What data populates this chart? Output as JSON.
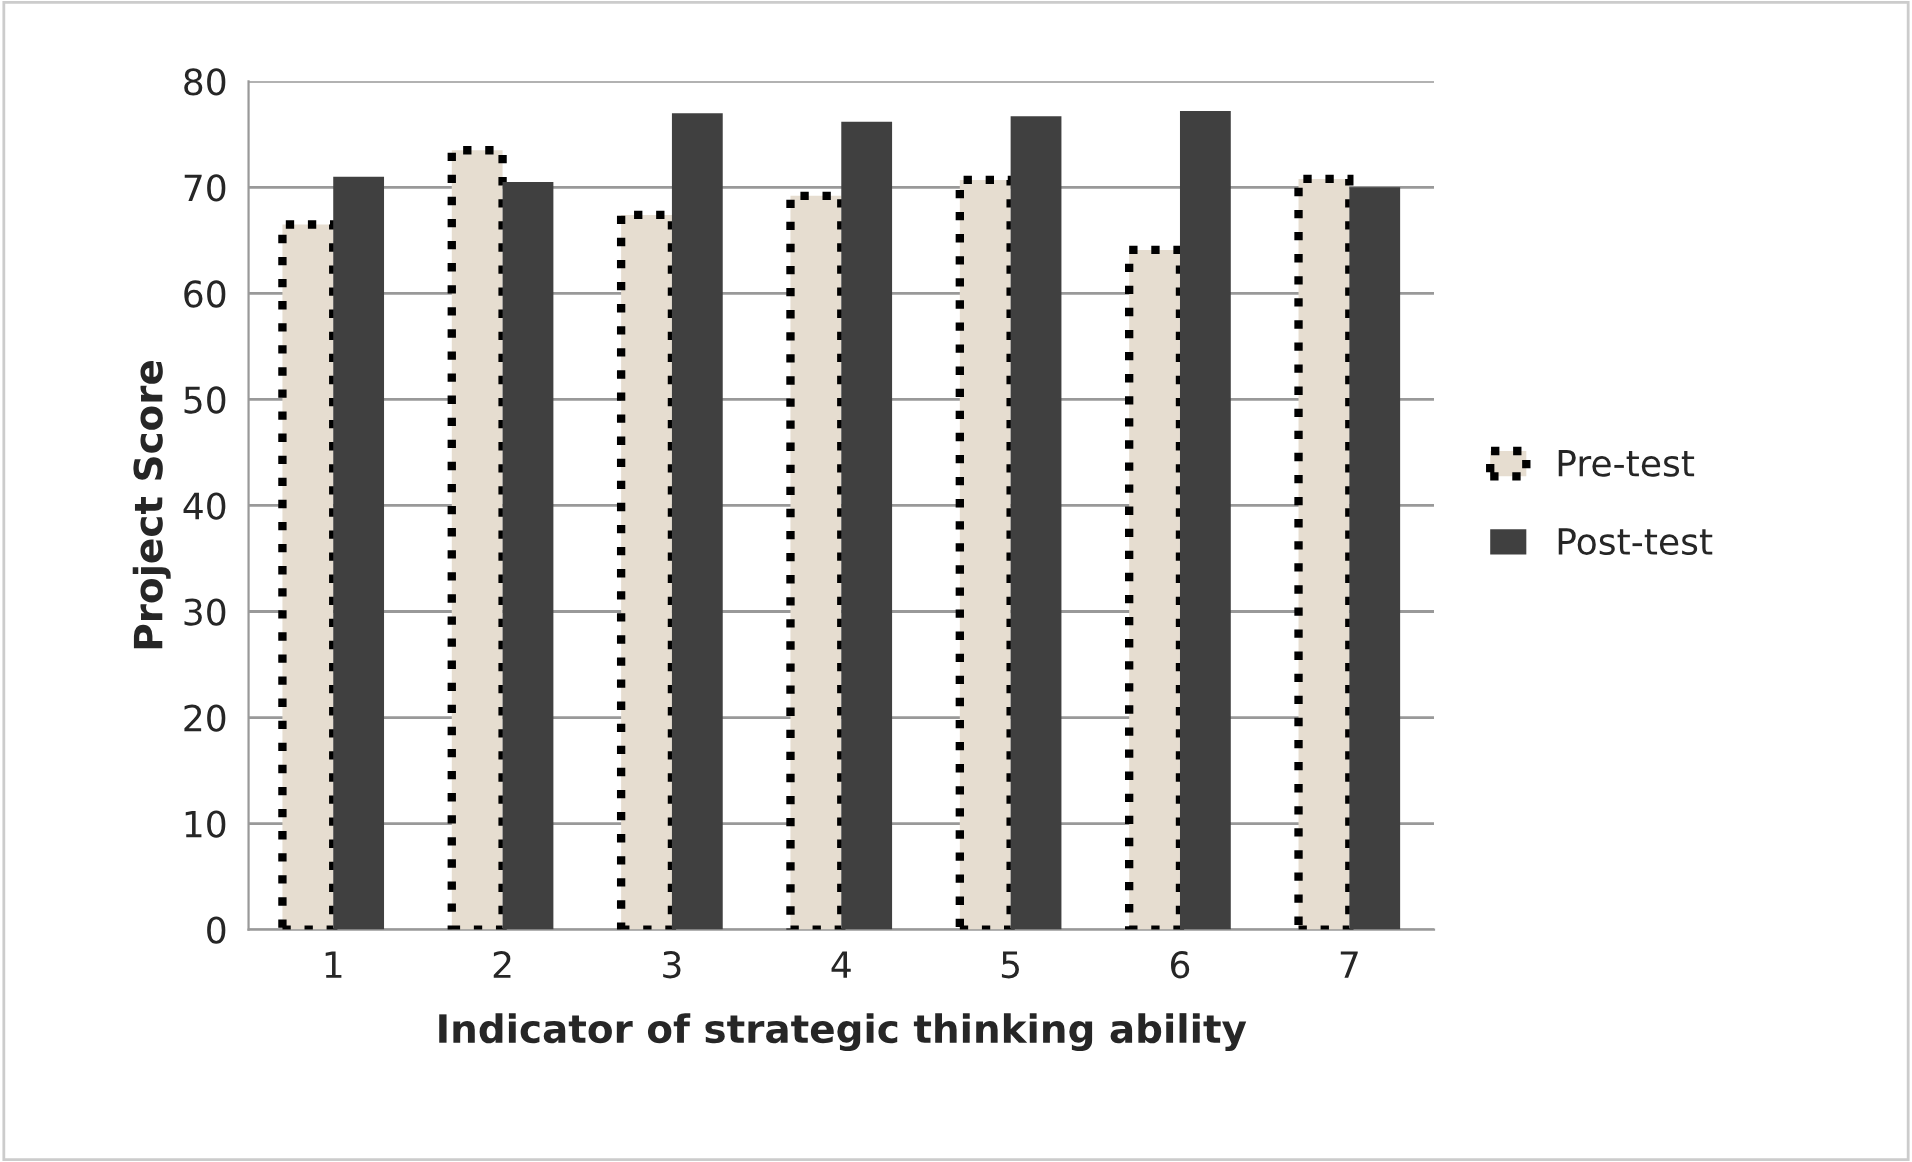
{
  "chart_data": {
    "type": "bar",
    "xlabel": "Indicator of strategic thinking ability",
    "ylabel": "Project Score",
    "categories": [
      "1",
      "2",
      "3",
      "4",
      "5",
      "6",
      "7"
    ],
    "series": [
      {
        "name": "Pre-test",
        "color": "#e6ddd0",
        "line_style": "dotted",
        "values": [
          66.5,
          73.5,
          67.4,
          69.2,
          70.7,
          64.1,
          70.8
        ]
      },
      {
        "name": "Post-test",
        "color": "#404040",
        "values": [
          71.0,
          70.5,
          77.0,
          76.2,
          76.7,
          77.2,
          70.0
        ]
      }
    ],
    "ylim": [
      0,
      80
    ],
    "yticks": [
      0,
      10,
      20,
      30,
      40,
      50,
      60,
      70,
      80
    ],
    "grid": "y",
    "legend": "right"
  }
}
